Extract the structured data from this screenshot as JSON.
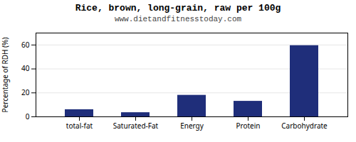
{
  "chart_data": {
    "type": "bar",
    "title": "Rice, brown, long-grain, raw per 100g",
    "subtitle": "www.dietandfitnesstoday.com",
    "categories": [
      "total-fat",
      "Saturated-Fat",
      "Energy",
      "Protein",
      "Carbohydrate"
    ],
    "values": [
      6,
      3.5,
      18,
      13,
      59.5
    ],
    "color": "#1f2e7a",
    "ylabel": "Percentage of RDH (%)",
    "ylim": [
      0,
      70
    ],
    "yticks": [
      0,
      20,
      40,
      60
    ],
    "grid": true
  }
}
